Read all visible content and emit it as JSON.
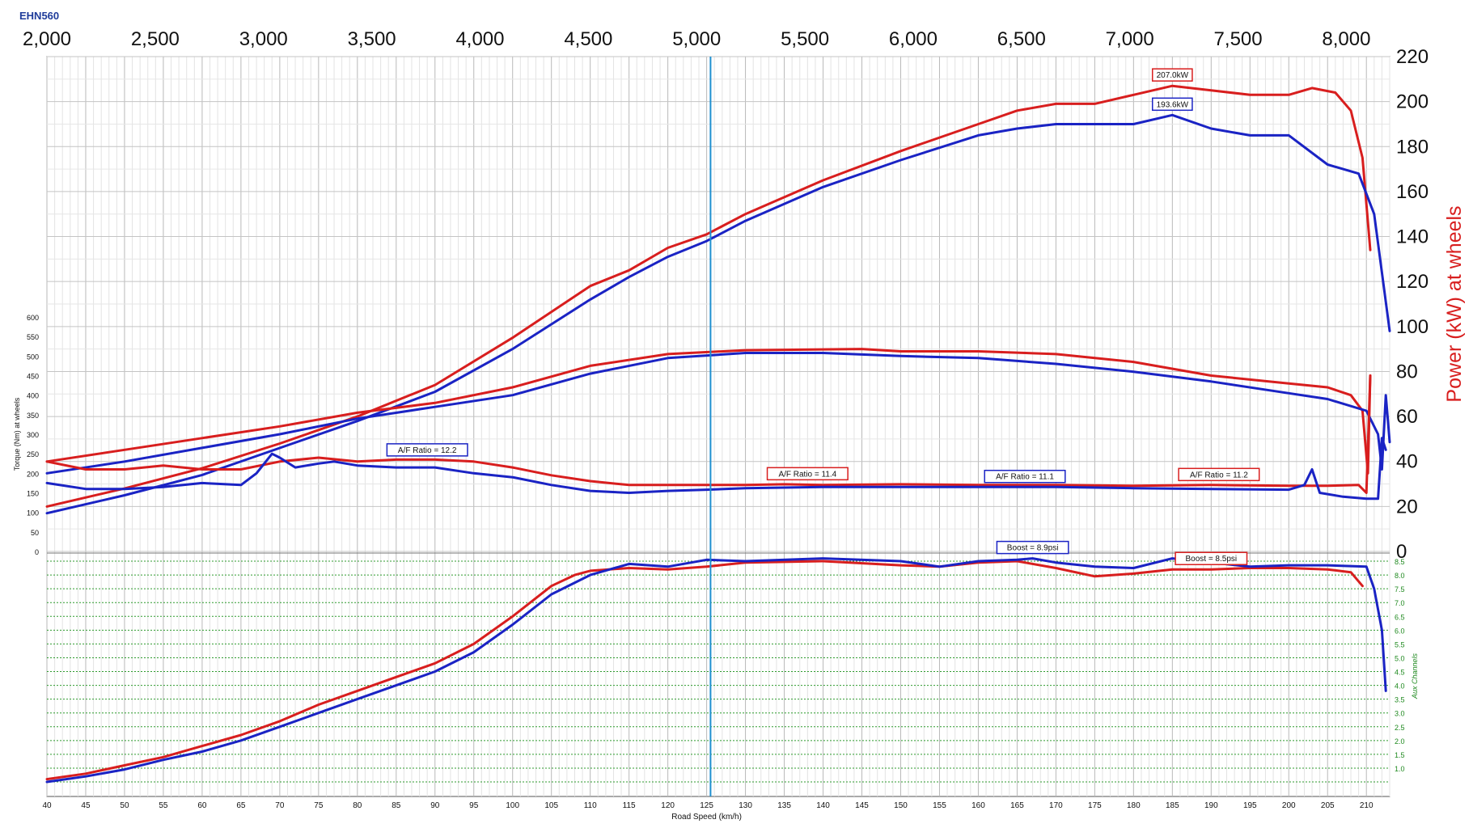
{
  "chart_data": {
    "type": "line",
    "title": "EHN560",
    "rpm_axis": {
      "ticks": [
        "2,000",
        "2,500",
        "3,000",
        "3,500",
        "4,000",
        "4,500",
        "5,000",
        "5,500",
        "6,000",
        "6,500",
        "7,000",
        "7,500",
        "8,000"
      ],
      "range": [
        2000,
        8200
      ]
    },
    "x_axis": {
      "label": "Road Speed (km/h)",
      "range": [
        40,
        213
      ],
      "ticks": [
        40,
        45,
        50,
        55,
        60,
        65,
        70,
        75,
        80,
        85,
        90,
        95,
        100,
        105,
        110,
        115,
        120,
        125,
        130,
        135,
        140,
        145,
        150,
        155,
        160,
        165,
        170,
        175,
        180,
        185,
        190,
        195,
        200,
        205,
        210
      ]
    },
    "power_axis": {
      "label": "Power (kW) at wheels",
      "range": [
        0,
        220
      ],
      "ticks": [
        0,
        20,
        40,
        60,
        80,
        100,
        120,
        140,
        160,
        180,
        200,
        220
      ]
    },
    "torque_axis": {
      "label": "Torque (Nm) at wheels",
      "range": [
        0,
        600
      ],
      "ticks": [
        0,
        50,
        100,
        150,
        200,
        250,
        300,
        350,
        400,
        450,
        500,
        550,
        600
      ]
    },
    "aux_axis": {
      "label": "Aux Channels",
      "range": [
        0.5,
        8.5
      ],
      "ticks": [
        "1.0",
        "1.5",
        "2.0",
        "2.5",
        "3.0",
        "3.5",
        "4.0",
        "4.5",
        "5.0",
        "5.5",
        "6.0",
        "6.5",
        "7.0",
        "7.5",
        "8.0",
        "8.5"
      ]
    },
    "cursor_speed": 125.5,
    "colors": {
      "red_run": "#d81e1e",
      "blue_run": "#1a23c4",
      "grid": "#c8c8c8",
      "aux_grid": "#2f9b2f",
      "cursor": "#1f8fd0",
      "axis_text": "#111111",
      "aux_text": "#208a20",
      "power_label": "#d81e1e"
    },
    "series": [
      {
        "color": "red",
        "group": "power",
        "x": [
          40,
          50,
          60,
          70,
          80,
          90,
          100,
          110,
          115,
          120,
          125,
          130,
          140,
          150,
          160,
          165,
          170,
          175,
          180,
          185,
          190,
          195,
          200,
          203,
          206,
          208,
          209.5,
          210.5
        ],
        "y": [
          20,
          28,
          37,
          48,
          60,
          74,
          95,
          118,
          125,
          135,
          141,
          150,
          165,
          178,
          190,
          196,
          199,
          199,
          203,
          207,
          205,
          203,
          203,
          206,
          204,
          196,
          175,
          134
        ]
      },
      {
        "color": "blue",
        "group": "power",
        "x": [
          40,
          50,
          60,
          70,
          80,
          90,
          100,
          110,
          115,
          120,
          125,
          130,
          140,
          150,
          160,
          165,
          170,
          175,
          180,
          185,
          190,
          195,
          200,
          205,
          209,
          211,
          213
        ],
        "y": [
          17,
          25,
          34,
          46,
          58,
          71,
          90,
          112,
          122,
          131,
          138,
          147,
          162,
          174,
          185,
          188,
          190,
          190,
          190,
          194,
          188,
          185,
          185,
          172,
          168,
          150,
          98
        ]
      },
      {
        "color": "red",
        "group": "torque",
        "x": [
          40,
          50,
          60,
          70,
          80,
          90,
          100,
          110,
          120,
          130,
          140,
          145,
          150,
          160,
          170,
          180,
          190,
          200,
          205,
          208,
          209.5,
          210.2,
          210.5
        ],
        "y": [
          230,
          260,
          290,
          320,
          355,
          380,
          420,
          475,
          505,
          515,
          517,
          518,
          512,
          512,
          505,
          485,
          450,
          430,
          420,
          400,
          360,
          200,
          450
        ]
      },
      {
        "color": "blue",
        "group": "torque",
        "x": [
          40,
          50,
          60,
          70,
          80,
          90,
          100,
          110,
          120,
          130,
          140,
          150,
          160,
          170,
          180,
          190,
          200,
          205,
          210,
          211.5,
          212,
          212.5,
          213
        ],
        "y": [
          200,
          230,
          265,
          300,
          340,
          370,
          400,
          455,
          495,
          508,
          508,
          500,
          495,
          480,
          460,
          435,
          405,
          390,
          360,
          300,
          210,
          400,
          280
        ]
      },
      {
        "color": "red",
        "group": "afr",
        "x": [
          40,
          45,
          50,
          55,
          60,
          65,
          70,
          75,
          80,
          85,
          90,
          95,
          100,
          105,
          110,
          115,
          120,
          125,
          130,
          135,
          140,
          150,
          160,
          170,
          180,
          190,
          200,
          205,
          209,
          210,
          210.5
        ],
        "y": [
          230,
          210,
          210,
          220,
          210,
          210,
          230,
          240,
          230,
          235,
          235,
          230,
          215,
          195,
          180,
          170,
          170,
          170,
          170,
          172,
          170,
          172,
          170,
          170,
          168,
          170,
          168,
          168,
          170,
          150,
          450
        ]
      },
      {
        "color": "blue",
        "group": "afr",
        "x": [
          40,
          45,
          50,
          55,
          60,
          65,
          67,
          69,
          70,
          72,
          75,
          77,
          80,
          85,
          90,
          95,
          100,
          105,
          110,
          115,
          120,
          125,
          130,
          140,
          150,
          160,
          170,
          180,
          190,
          200,
          202,
          203,
          204,
          207,
          210,
          211.5,
          212,
          212.5
        ],
        "y": [
          175,
          160,
          160,
          165,
          175,
          170,
          200,
          250,
          240,
          215,
          225,
          230,
          220,
          215,
          215,
          200,
          190,
          170,
          155,
          150,
          155,
          158,
          162,
          165,
          165,
          165,
          165,
          162,
          160,
          158,
          170,
          210,
          150,
          140,
          135,
          135,
          290,
          260
        ]
      },
      {
        "color": "red",
        "group": "boost",
        "x": [
          40,
          45,
          50,
          55,
          60,
          65,
          70,
          75,
          80,
          85,
          90,
          95,
          100,
          105,
          108,
          110,
          115,
          120,
          125,
          130,
          140,
          150,
          155,
          160,
          165,
          170,
          175,
          180,
          185,
          190,
          195,
          200,
          205,
          208,
          209.5
        ],
        "y": [
          0.6,
          0.8,
          1.1,
          1.4,
          1.8,
          2.2,
          2.7,
          3.3,
          3.8,
          4.3,
          4.8,
          5.5,
          6.5,
          7.6,
          8.0,
          8.15,
          8.25,
          8.2,
          8.3,
          8.45,
          8.5,
          8.35,
          8.3,
          8.45,
          8.5,
          8.25,
          7.95,
          8.05,
          8.2,
          8.2,
          8.25,
          8.25,
          8.2,
          8.1,
          7.6
        ]
      },
      {
        "color": "blue",
        "group": "boost",
        "x": [
          40,
          45,
          50,
          55,
          60,
          65,
          70,
          75,
          80,
          85,
          90,
          95,
          100,
          105,
          110,
          115,
          120,
          125,
          130,
          140,
          150,
          155,
          160,
          165,
          167,
          170,
          175,
          180,
          185,
          190,
          195,
          200,
          205,
          210,
          211,
          212,
          212.5
        ],
        "y": [
          0.5,
          0.7,
          0.95,
          1.3,
          1.6,
          2.0,
          2.5,
          3.0,
          3.5,
          4.0,
          4.5,
          5.2,
          6.2,
          7.3,
          8.0,
          8.4,
          8.3,
          8.55,
          8.5,
          8.6,
          8.5,
          8.3,
          8.5,
          8.55,
          8.6,
          8.45,
          8.3,
          8.25,
          8.6,
          8.45,
          8.3,
          8.35,
          8.35,
          8.3,
          7.5,
          6.0,
          3.8
        ]
      }
    ],
    "annotations": [
      {
        "text": "207.0kW",
        "color": "red",
        "x": 185,
        "group": "power",
        "y": 207,
        "side": "above"
      },
      {
        "text": "193.6kW",
        "color": "blue",
        "x": 185,
        "group": "power",
        "y": 194,
        "side": "above"
      },
      {
        "text": "A/F Ratio = 12.2",
        "color": "blue",
        "x": 89,
        "group": "afr",
        "y": 232,
        "side": "above"
      },
      {
        "text": "A/F Ratio = 11.4",
        "color": "red",
        "x": 138,
        "group": "afr",
        "y": 171,
        "side": "above"
      },
      {
        "text": "A/F Ratio = 11.1",
        "color": "blue",
        "x": 166,
        "group": "afr",
        "y": 164,
        "side": "above"
      },
      {
        "text": "A/F Ratio = 11.2",
        "color": "red",
        "x": 191,
        "group": "afr",
        "y": 169,
        "side": "above"
      },
      {
        "text": "Boost = 8.9psi",
        "color": "blue",
        "x": 167,
        "group": "boost",
        "y": 8.6,
        "side": "above"
      },
      {
        "text": "Boost = 8.5psi",
        "color": "red",
        "x": 190,
        "group": "boost",
        "y": 8.2,
        "side": "above"
      }
    ]
  }
}
